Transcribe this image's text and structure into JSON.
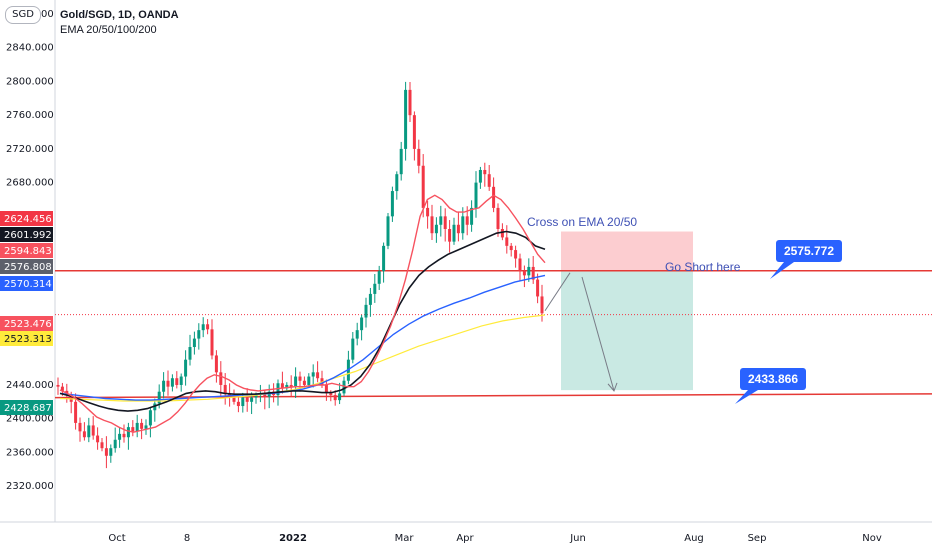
{
  "header": {
    "title": "Gold/SGD, 1D, OANDA",
    "indicators": "EMA 20/50/100/200",
    "currency": "SGD"
  },
  "chart_data": {
    "type": "candlestick",
    "symbol": "Gold/SGD",
    "timeframe": "1D",
    "source": "OANDA",
    "ylim": [
      2300,
      2880
    ],
    "y_ticks": [
      "2880.000",
      "2840.000",
      "2800.000",
      "2760.000",
      "2720.000",
      "2680.000",
      "2440.000",
      "2400.000",
      "2360.000",
      "2320.000"
    ],
    "x_ticks": [
      "Oct",
      "8",
      "2022",
      "Mar",
      "Apr",
      "Jun",
      "Aug",
      "Sep",
      "Nov"
    ],
    "price_labels": [
      {
        "value": "2624.456",
        "color": "#f23645"
      },
      {
        "value": "2601.992",
        "color": "#131722"
      },
      {
        "value": "2594.843",
        "color": "#f7525f"
      },
      {
        "value": "2576.808",
        "color": "#5d606b"
      },
      {
        "value": "2570.314",
        "color": "#2962ff"
      },
      {
        "value": "2523.476",
        "color": "#f7525f"
      },
      {
        "value": "2523.313",
        "color": "#ffeb3b"
      },
      {
        "value": "2428.687",
        "color": "#089981"
      }
    ],
    "closes": [
      2438,
      2433,
      2428,
      2420,
      2395,
      2385,
      2378,
      2392,
      2380,
      2372,
      2365,
      2356,
      2365,
      2375,
      2382,
      2378,
      2390,
      2385,
      2395,
      2388,
      2392,
      2410,
      2418,
      2432,
      2445,
      2438,
      2448,
      2440,
      2450,
      2470,
      2485,
      2495,
      2505,
      2512,
      2506,
      2475,
      2455,
      2440,
      2430,
      2425,
      2420,
      2415,
      2425,
      2420,
      2425,
      2428,
      2430,
      2426,
      2432,
      2428,
      2442,
      2436,
      2440,
      2438,
      2450,
      2445,
      2440,
      2450,
      2455,
      2448,
      2440,
      2430,
      2428,
      2422,
      2430,
      2445,
      2470,
      2495,
      2505,
      2520,
      2535,
      2548,
      2560,
      2575,
      2605,
      2640,
      2670,
      2690,
      2720,
      2790,
      2760,
      2720,
      2700,
      2650,
      2640,
      2620,
      2630,
      2640,
      2625,
      2610,
      2630,
      2620,
      2640,
      2630,
      2650,
      2680,
      2695,
      2690,
      2675,
      2650,
      2625,
      2615,
      2605,
      2600,
      2590,
      2575,
      2570,
      2580,
      2565,
      2545,
      2525
    ],
    "ema20": [
      2434,
      2430,
      2425,
      2418,
      2410,
      2402,
      2398,
      2395,
      2390,
      2386,
      2384,
      2386,
      2388,
      2390,
      2395,
      2400,
      2408,
      2418,
      2430,
      2440,
      2448,
      2452,
      2450,
      2446,
      2440,
      2436,
      2434,
      2433,
      2434,
      2435,
      2436,
      2437,
      2438,
      2438,
      2439,
      2440,
      2440,
      2442,
      2440,
      2438,
      2438,
      2444,
      2456,
      2472,
      2490,
      2510,
      2535,
      2565,
      2600,
      2640,
      2660,
      2665,
      2660,
      2650,
      2645,
      2645,
      2648,
      2650,
      2658,
      2665,
      2660,
      2650,
      2638,
      2625,
      2610,
      2595,
      2585
    ],
    "ema50": [
      2430,
      2427,
      2423,
      2419,
      2415,
      2412,
      2410,
      2409,
      2410,
      2412,
      2416,
      2420,
      2425,
      2430,
      2432,
      2433,
      2432,
      2430,
      2429,
      2429,
      2429,
      2430,
      2431,
      2432,
      2433,
      2433,
      2432,
      2431,
      2431,
      2434,
      2440,
      2450,
      2465,
      2485,
      2510,
      2535,
      2555,
      2570,
      2580,
      2588,
      2595,
      2600,
      2605,
      2610,
      2615,
      2620,
      2622,
      2620,
      2615,
      2605,
      2601
    ],
    "ema100": [
      2430,
      2428,
      2426,
      2424,
      2423,
      2422,
      2422,
      2423,
      2424,
      2425,
      2426,
      2427,
      2428,
      2429,
      2430,
      2432,
      2435,
      2440,
      2448,
      2458,
      2470,
      2485,
      2500,
      2512,
      2522,
      2530,
      2537,
      2543,
      2550,
      2556,
      2562,
      2566,
      2570
    ],
    "ema200": [
      2424,
      2423,
      2422,
      2421,
      2421,
      2421,
      2422,
      2423,
      2425,
      2427,
      2430,
      2434,
      2440,
      2448,
      2456,
      2466,
      2476,
      2486,
      2494,
      2502,
      2510,
      2516,
      2520,
      2523
    ],
    "levels": [
      {
        "name": "resistance",
        "value": 2575.772
      },
      {
        "name": "support",
        "value": 2433.866
      }
    ],
    "annotations": {
      "cross": "Cross on EMA 20/50",
      "short": "Go Short here",
      "level_high": "2575.772",
      "level_low": "2433.866"
    },
    "position": {
      "entry": 2575.772,
      "stop": 2622,
      "target": 2433.866
    },
    "colors": {
      "up": "#089981",
      "down": "#f23645",
      "ema20": "#f7525f",
      "ema50": "#131722",
      "ema100": "#2962ff",
      "ema200": "#ffeb3b",
      "callout": "#2962ff"
    }
  }
}
